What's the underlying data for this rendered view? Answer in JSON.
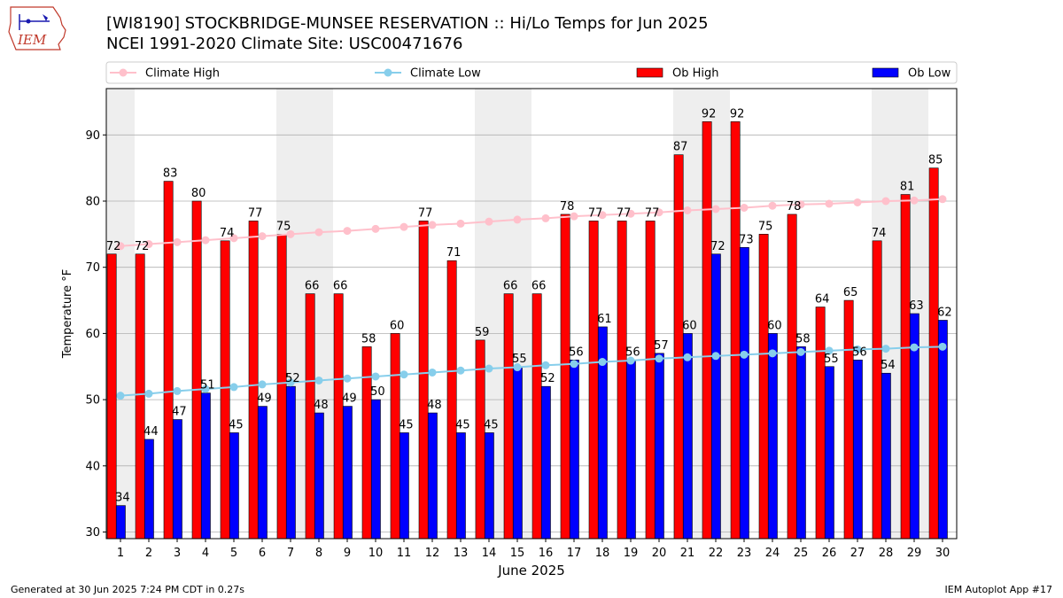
{
  "header": {
    "title_line1": "[WI8190] STOCKBRIDGE-MUNSEE RESERVATION :: Hi/Lo Temps for Jun 2025",
    "title_line2": "NCEI 1991-2020 Climate Site: USC00471676",
    "logo_text": "IEM"
  },
  "footer": {
    "left": "Generated at 30 Jun 2025 7:24 PM CDT in 0.27s",
    "right": "IEM Autoplot App #17"
  },
  "colors": {
    "ob_high": "#ff0000",
    "ob_low": "#0000ff",
    "climate_high": "#ffc0cb",
    "climate_low": "#87ceeb",
    "weekend_shade": "#eeeeee",
    "grid": "#b0b0b0"
  },
  "chart_data": {
    "type": "bar",
    "xlabel": "June 2025",
    "ylabel": "Temperature °F",
    "ylim": [
      29,
      97
    ],
    "yticks": [
      30,
      40,
      50,
      60,
      70,
      80,
      90
    ],
    "grid": true,
    "legend_placement": "top, above plot",
    "weekend_days": [
      1,
      7,
      8,
      14,
      15,
      21,
      22,
      28,
      29
    ],
    "categories": [
      "1",
      "2",
      "3",
      "4",
      "5",
      "6",
      "7",
      "8",
      "9",
      "10",
      "11",
      "12",
      "13",
      "14",
      "15",
      "16",
      "17",
      "18",
      "19",
      "20",
      "21",
      "22",
      "23",
      "24",
      "25",
      "26",
      "27",
      "28",
      "29",
      "30"
    ],
    "series": [
      {
        "name": "Ob High",
        "kind": "bar",
        "values": [
          72,
          72,
          83,
          80,
          74,
          77,
          75,
          66,
          66,
          58,
          60,
          77,
          71,
          59,
          66,
          66,
          78,
          77,
          77,
          77,
          87,
          92,
          92,
          75,
          78,
          64,
          65,
          74,
          81,
          85
        ]
      },
      {
        "name": "Ob Low",
        "kind": "bar",
        "values": [
          34,
          44,
          47,
          51,
          45,
          49,
          52,
          48,
          49,
          50,
          45,
          48,
          45,
          45,
          55,
          52,
          56,
          61,
          56,
          57,
          60,
          72,
          73,
          60,
          58,
          55,
          56,
          54,
          63,
          62
        ]
      },
      {
        "name": "Climate High",
        "kind": "line",
        "values": [
          73.2,
          73.5,
          73.8,
          74.1,
          74.4,
          74.7,
          75.0,
          75.3,
          75.5,
          75.8,
          76.1,
          76.4,
          76.6,
          76.9,
          77.2,
          77.4,
          77.7,
          77.9,
          78.1,
          78.3,
          78.6,
          78.8,
          79.0,
          79.3,
          79.5,
          79.6,
          79.8,
          80.0,
          80.1,
          80.3
        ]
      },
      {
        "name": "Climate Low",
        "kind": "line",
        "values": [
          50.6,
          50.9,
          51.3,
          51.6,
          51.9,
          52.3,
          52.6,
          52.9,
          53.2,
          53.5,
          53.8,
          54.1,
          54.4,
          54.7,
          54.9,
          55.2,
          55.4,
          55.7,
          55.9,
          56.2,
          56.4,
          56.6,
          56.8,
          57.0,
          57.2,
          57.4,
          57.6,
          57.7,
          57.9,
          58.0
        ]
      }
    ]
  }
}
